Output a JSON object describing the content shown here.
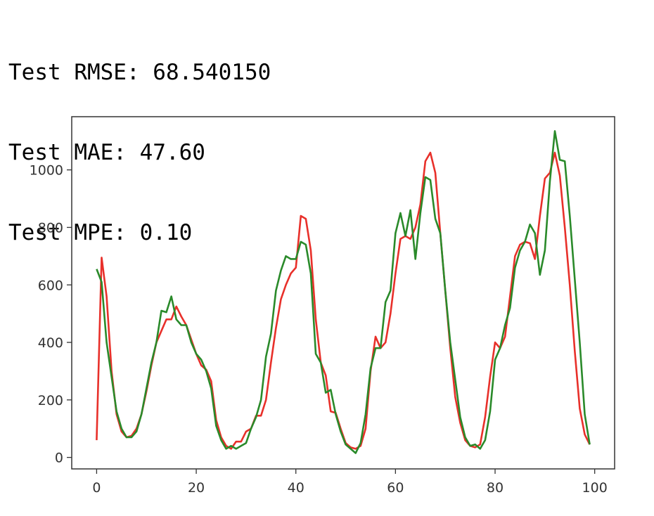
{
  "output": {
    "lines": [
      "Test RMSE: 68.540150",
      "Test MAE: 47.60",
      "Test MPE: 0.10"
    ]
  },
  "chart_data": {
    "type": "line",
    "title": "",
    "xlabel": "",
    "ylabel": "",
    "xlim": [
      -5,
      104
    ],
    "ylim": [
      -40,
      1185
    ],
    "xticks": [
      0,
      20,
      40,
      60,
      80,
      100
    ],
    "yticks": [
      0,
      200,
      400,
      600,
      800,
      1000
    ],
    "grid": false,
    "legend": "none",
    "series": [
      {
        "color": "#e8302a",
        "x": [
          0,
          1,
          2,
          3,
          4,
          5,
          6,
          7,
          8,
          9,
          10,
          11,
          12,
          13,
          14,
          15,
          16,
          17,
          18,
          19,
          20,
          21,
          22,
          23,
          24,
          25,
          26,
          27,
          28,
          29,
          30,
          31,
          32,
          33,
          34,
          35,
          36,
          37,
          38,
          39,
          40,
          41,
          42,
          43,
          44,
          45,
          46,
          47,
          48,
          49,
          50,
          51,
          52,
          53,
          54,
          55,
          56,
          57,
          58,
          59,
          60,
          61,
          62,
          63,
          64,
          65,
          66,
          67,
          68,
          69,
          70,
          71,
          72,
          73,
          74,
          75,
          76,
          77,
          78,
          79,
          80,
          81,
          82,
          83,
          84,
          85,
          86,
          87,
          88,
          89,
          90,
          91,
          92,
          93,
          94,
          95,
          96,
          97,
          98,
          99
        ],
        "values": [
          60,
          695,
          560,
          300,
          150,
          90,
          70,
          75,
          100,
          150,
          230,
          320,
          400,
          440,
          480,
          480,
          525,
          490,
          460,
          410,
          360,
          320,
          305,
          265,
          130,
          70,
          40,
          30,
          55,
          55,
          90,
          100,
          145,
          145,
          200,
          330,
          450,
          550,
          600,
          640,
          660,
          840,
          830,
          720,
          480,
          330,
          285,
          160,
          155,
          100,
          50,
          35,
          30,
          40,
          100,
          300,
          420,
          380,
          400,
          500,
          640,
          760,
          770,
          760,
          800,
          880,
          1030,
          1060,
          990,
          780,
          580,
          380,
          210,
          120,
          60,
          40,
          35,
          45,
          140,
          280,
          400,
          380,
          420,
          560,
          700,
          740,
          750,
          745,
          690,
          840,
          970,
          990,
          1060,
          980,
          800,
          600,
          370,
          170,
          80,
          45
        ]
      },
      {
        "color": "#2a8a2a",
        "x": [
          0,
          1,
          2,
          3,
          4,
          5,
          6,
          7,
          8,
          9,
          10,
          11,
          12,
          13,
          14,
          15,
          16,
          17,
          18,
          19,
          20,
          21,
          22,
          23,
          24,
          25,
          26,
          27,
          28,
          29,
          30,
          31,
          32,
          33,
          34,
          35,
          36,
          37,
          38,
          39,
          40,
          41,
          42,
          43,
          44,
          45,
          46,
          47,
          48,
          49,
          50,
          51,
          52,
          53,
          54,
          55,
          56,
          57,
          58,
          59,
          60,
          61,
          62,
          63,
          64,
          65,
          66,
          67,
          68,
          69,
          70,
          71,
          72,
          73,
          74,
          75,
          76,
          77,
          78,
          79,
          80,
          81,
          82,
          83,
          84,
          85,
          86,
          87,
          88,
          89,
          90,
          91,
          92,
          93,
          94,
          95,
          96,
          97,
          98,
          99
        ],
        "values": [
          655,
          610,
          400,
          280,
          160,
          100,
          70,
          70,
          90,
          150,
          240,
          330,
          400,
          510,
          505,
          560,
          480,
          460,
          460,
          400,
          360,
          340,
          300,
          240,
          110,
          60,
          30,
          40,
          30,
          40,
          50,
          100,
          140,
          200,
          350,
          430,
          580,
          650,
          700,
          690,
          690,
          750,
          740,
          640,
          360,
          330,
          225,
          235,
          150,
          90,
          45,
          30,
          15,
          50,
          150,
          310,
          380,
          380,
          540,
          580,
          780,
          850,
          770,
          860,
          690,
          850,
          975,
          965,
          830,
          780,
          580,
          400,
          270,
          140,
          70,
          40,
          45,
          30,
          60,
          160,
          340,
          380,
          460,
          520,
          660,
          720,
          750,
          810,
          780,
          635,
          720,
          960,
          1135,
          1035,
          1030,
          840,
          620,
          400,
          150,
          45
        ]
      }
    ]
  }
}
